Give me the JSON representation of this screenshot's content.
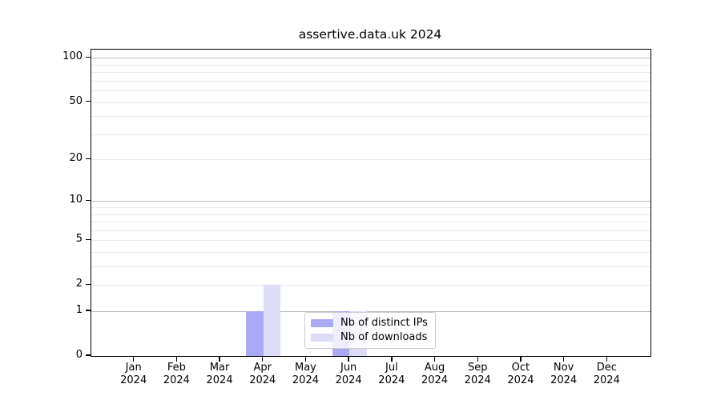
{
  "title": "assertive.data.uk 2024",
  "chart_data": {
    "type": "bar",
    "title": "assertive.data.uk 2024",
    "categories": [
      "Jan 2024",
      "Feb 2024",
      "Mar 2024",
      "Apr 2024",
      "May 2024",
      "Jun 2024",
      "Jul 2024",
      "Aug 2024",
      "Sep 2024",
      "Oct 2024",
      "Nov 2024",
      "Dec 2024"
    ],
    "month_labels": [
      "Jan",
      "Feb",
      "Mar",
      "Apr",
      "May",
      "Jun",
      "Jul",
      "Aug",
      "Sep",
      "Oct",
      "Nov",
      "Dec"
    ],
    "year_label": "2024",
    "series": [
      {
        "name": "Nb of distinct IPs",
        "color": "#a9a9f6",
        "values": [
          0,
          0,
          0,
          1,
          0,
          1,
          0,
          0,
          0,
          0,
          0,
          0
        ]
      },
      {
        "name": "Nb of downloads",
        "color": "#dcdcf8",
        "values": [
          0,
          0,
          0,
          2,
          0,
          1,
          0,
          0,
          0,
          0,
          0,
          0
        ]
      }
    ],
    "xlabel": "",
    "ylabel": "",
    "yscale": "log1p",
    "ylim": [
      0,
      114
    ],
    "y_ticks": [
      0,
      1,
      2,
      5,
      10,
      20,
      50,
      100
    ],
    "y_major_gridlines": [
      1,
      10,
      100
    ],
    "y_minor_gridlines": [
      2,
      3,
      4,
      5,
      6,
      7,
      8,
      9,
      20,
      30,
      40,
      50,
      60,
      70,
      80,
      90
    ],
    "grid": "both",
    "legend_position": "lower center-right, inside plot"
  },
  "legend": {
    "items": [
      {
        "label": "Nb of distinct IPs",
        "color": "#a9a9f6"
      },
      {
        "label": "Nb of downloads",
        "color": "#dcdcf8"
      }
    ]
  },
  "colors": {
    "distinct_ips": "#a9a9f6",
    "downloads": "#dcdcf8",
    "major_grid": "#b9b9b9",
    "minor_grid": "#e9e9e9",
    "spine": "#000000",
    "background": "#ffffff"
  }
}
